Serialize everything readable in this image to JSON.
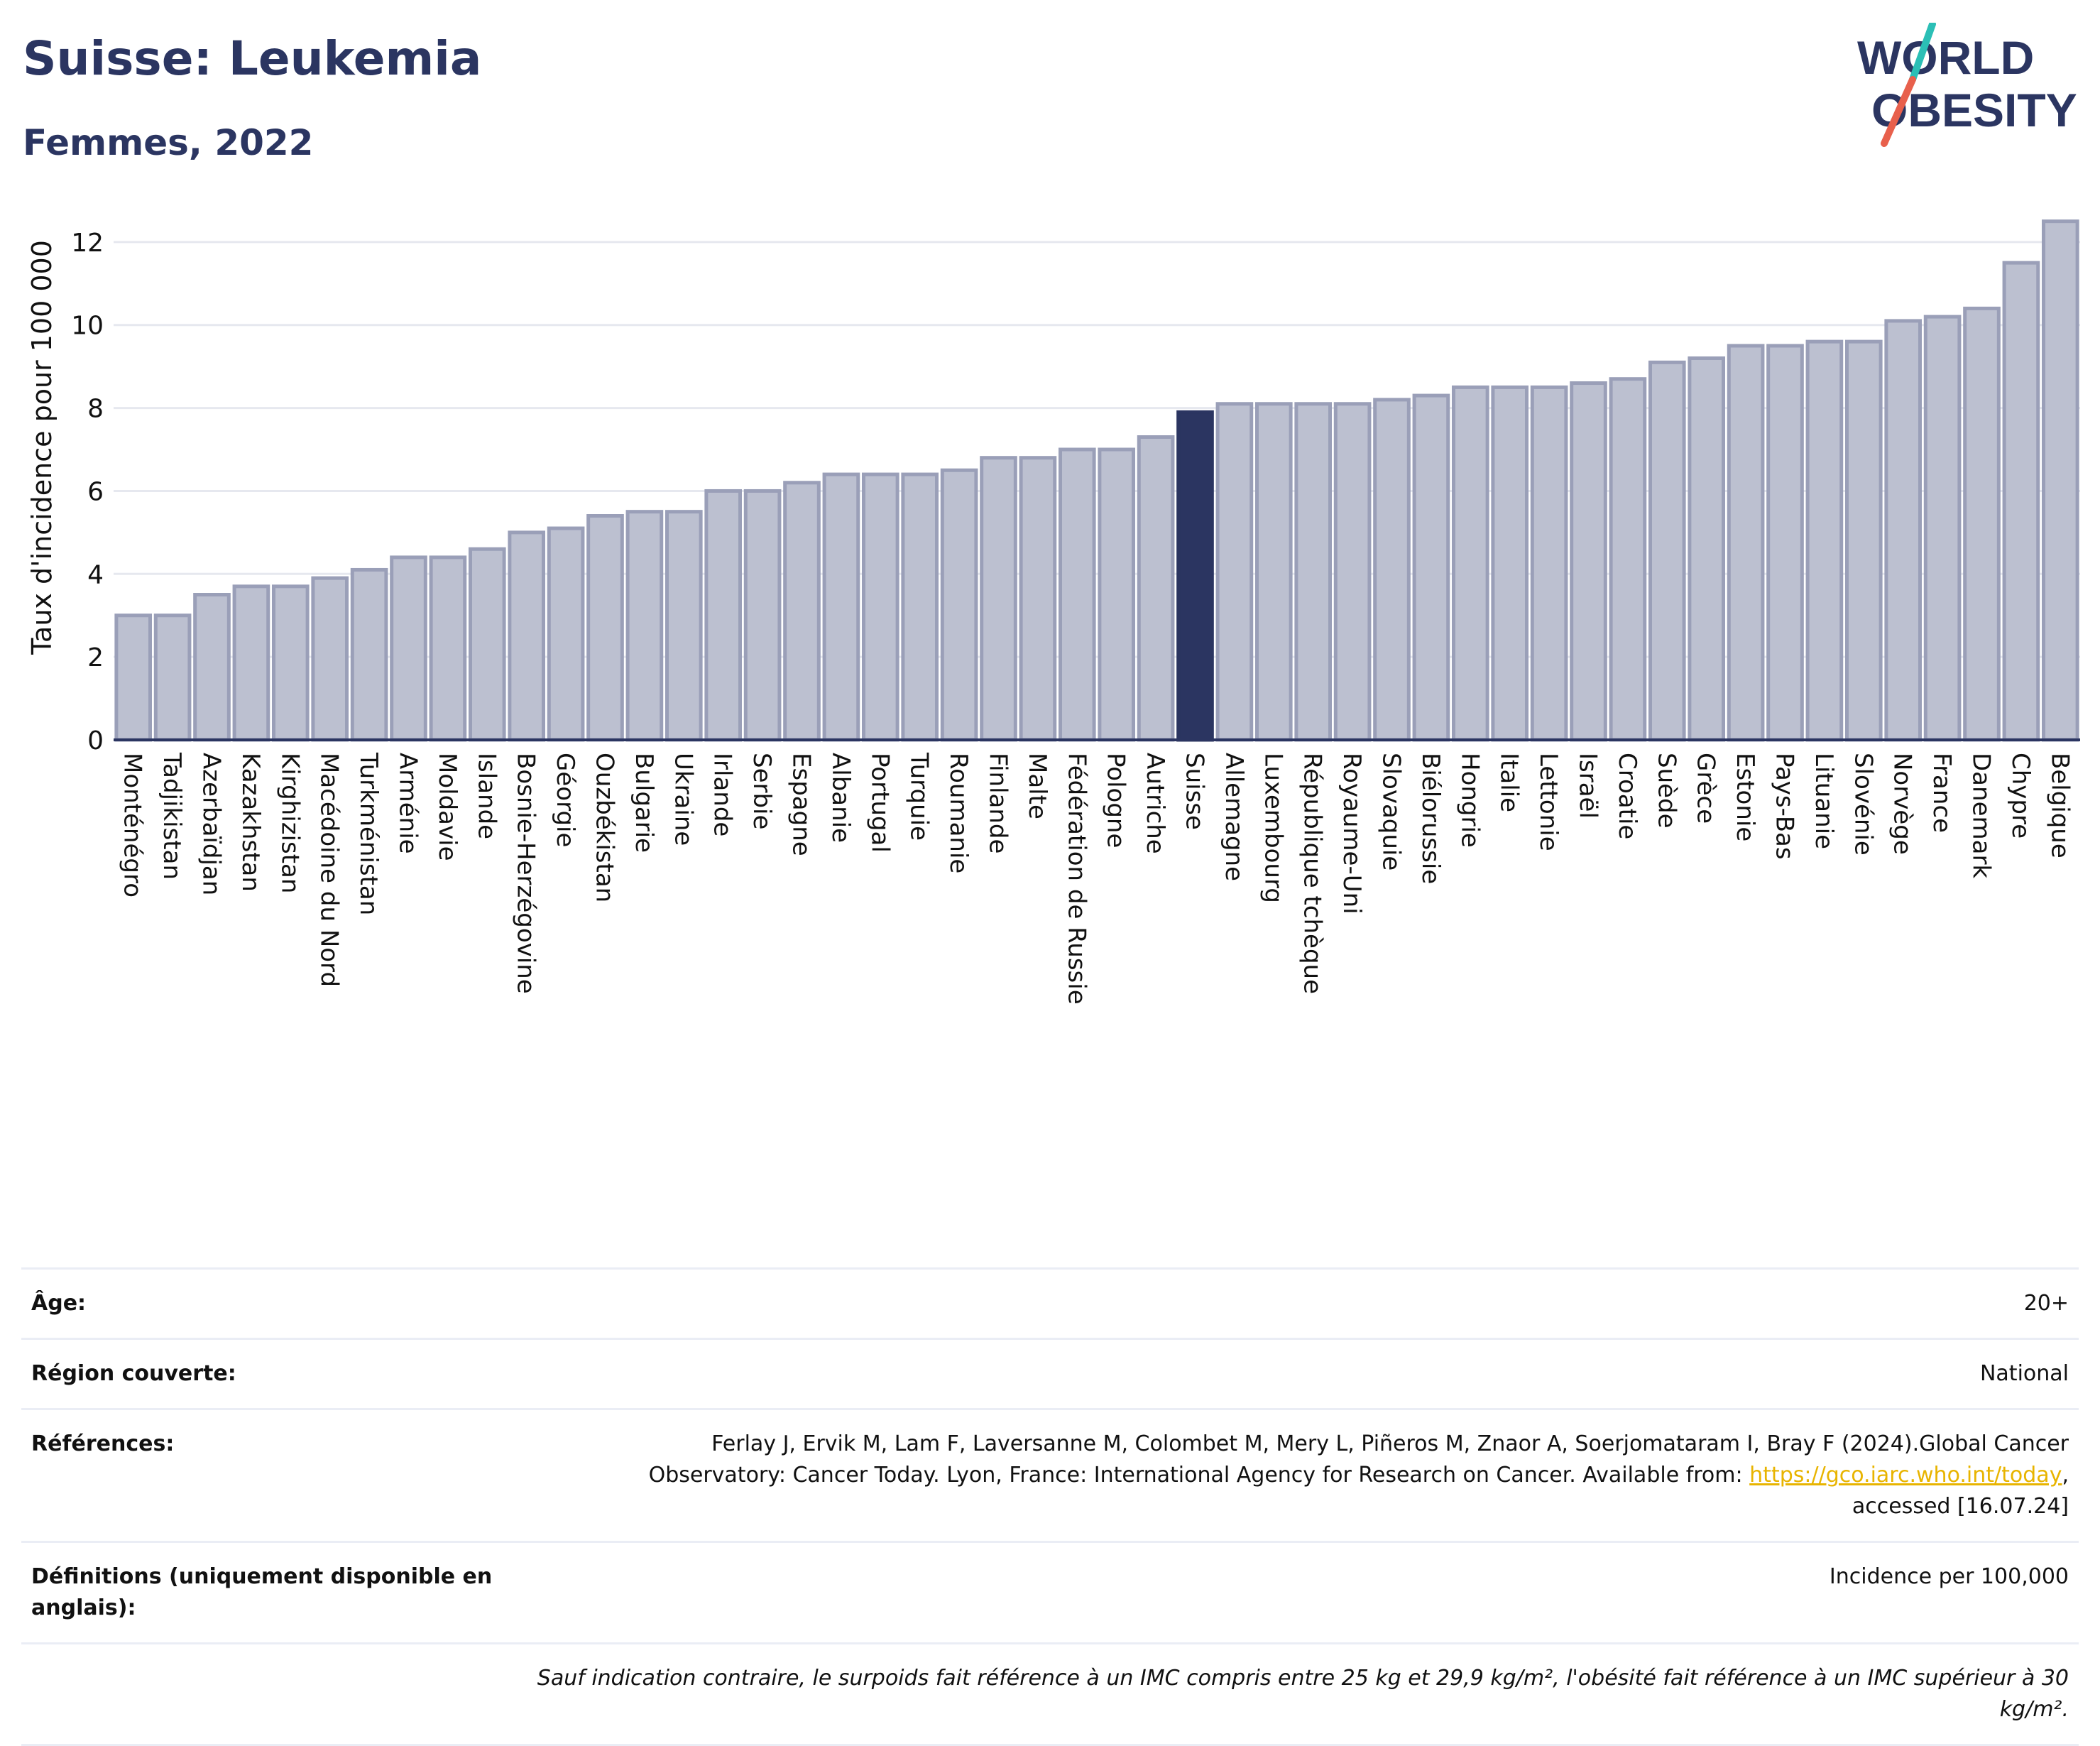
{
  "header": {
    "title": "Suisse: Leukemia",
    "subtitle": "Femmes, 2022"
  },
  "logo": {
    "line1": "WORLD",
    "line2": "OBESITY",
    "accent_colors": [
      "#2bbfb6",
      "#e8604c"
    ]
  },
  "colors": {
    "bar": "#bcc0d0",
    "bar_border": "#9a9fb8",
    "highlight": "#2b3561",
    "text": "#2b3561",
    "grid": "#e6e8ef"
  },
  "chart_data": {
    "type": "bar",
    "ylabel": "Taux d'incidence pour 100 000",
    "ylim": [
      0,
      12.7
    ],
    "yticks": [
      0,
      2,
      4,
      6,
      8,
      10,
      12
    ],
    "highlight": "Suisse",
    "categories": [
      "Monténégro",
      "Tadjikistan",
      "Azerbaïdjan",
      "Kazakhstan",
      "Kirghizistan",
      "Macédoine du Nord",
      "Turkménistan",
      "Arménie",
      "Moldavie",
      "Islande",
      "Bosnie-Herzégovine",
      "Géorgie",
      "Ouzbékistan",
      "Bulgarie",
      "Ukraine",
      "Irlande",
      "Serbie",
      "Espagne",
      "Albanie",
      "Portugal",
      "Turquie",
      "Roumanie",
      "Finlande",
      "Malte",
      "Fédération de Russie",
      "Pologne",
      "Autriche",
      "Suisse",
      "Allemagne",
      "Luxembourg",
      "République tchèque",
      "Royaume-Uni",
      "Slovaquie",
      "Biélorussie",
      "Hongrie",
      "Italie",
      "Lettonie",
      "Israël",
      "Croatie",
      "Suède",
      "Grèce",
      "Estonie",
      "Pays-Bas",
      "Lituanie",
      "Slovénie",
      "Norvège",
      "France",
      "Danemark",
      "Chypre",
      "Belgique"
    ],
    "values": [
      3.0,
      3.0,
      3.5,
      3.7,
      3.7,
      3.9,
      4.1,
      4.4,
      4.4,
      4.6,
      5.0,
      5.1,
      5.4,
      5.5,
      5.5,
      6.0,
      6.0,
      6.2,
      6.4,
      6.4,
      6.4,
      6.5,
      6.8,
      6.8,
      7.0,
      7.0,
      7.3,
      7.9,
      8.1,
      8.1,
      8.1,
      8.1,
      8.2,
      8.3,
      8.5,
      8.5,
      8.5,
      8.6,
      8.7,
      9.1,
      9.2,
      9.5,
      9.5,
      9.6,
      9.6,
      10.1,
      10.2,
      10.4,
      11.5,
      12.5
    ]
  },
  "meta": {
    "age_label": "Âge:",
    "age_value": "20+",
    "region_label": "Région couverte:",
    "region_value": "National",
    "refs_label": "Références:",
    "refs_text1": "Ferlay J, Ervik M, Lam F, Laversanne M, Colombet M, Mery L, Piñeros M, Znaor A, Soerjomataram I, Bray F (2024).Global Cancer",
    "refs_text2": "Observatory: Cancer Today. Lyon, France: International Agency for Research on Cancer. Available from:",
    "refs_link": "https://gco.iarc.who.int/today",
    "refs_text3": "accessed [16.07.24]",
    "defs_label": "Définitions (uniquement disponible en anglais):",
    "defs_value": "Incidence per 100,000",
    "note": "Sauf indication contraire, le surpoids fait référence à un IMC compris entre 25 kg et 29,9 kg/m², l'obésité fait référence à un IMC supérieur à 30 kg/m²."
  }
}
